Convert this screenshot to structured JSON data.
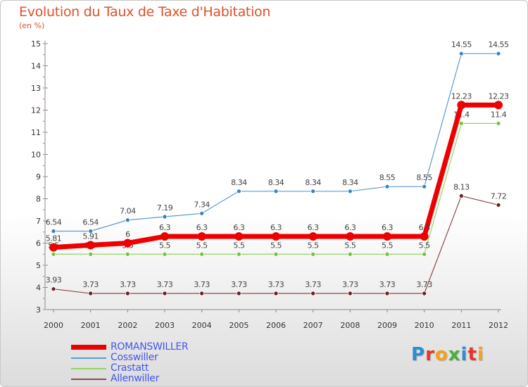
{
  "title": "Evolution du Taux de Taxe d'Habitation",
  "subtitle": "(en %)",
  "logo": {
    "letters": [
      "P",
      "r",
      "o",
      "x",
      "i",
      "t",
      "i"
    ],
    "colors": [
      "#2a8fd0",
      "#e8352e",
      "#f4a21b",
      "#4aae3a",
      "#2a8fd0",
      "#e8352e",
      "#f4a21b"
    ]
  },
  "chart_data": {
    "type": "line",
    "x": [
      "2000",
      "2001",
      "2002",
      "2003",
      "2004",
      "2005",
      "2006",
      "2007",
      "2008",
      "2009",
      "2010",
      "2011",
      "2012"
    ],
    "ylim": [
      3,
      15
    ],
    "yticks": [
      3,
      4,
      5,
      6,
      7,
      8,
      9,
      10,
      11,
      12,
      13,
      14,
      15
    ],
    "grid": false,
    "legend_position": "bottom-left",
    "series": [
      {
        "name": "Cosswiller",
        "color": "#5b9bd0",
        "point_color": "#3a80c0",
        "width": 1.2,
        "values": [
          6.54,
          6.54,
          7.04,
          7.19,
          7.34,
          8.34,
          8.34,
          8.34,
          8.34,
          8.55,
          8.55,
          14.55,
          14.55
        ],
        "labels": [
          "6.54",
          "6.54",
          "7.04",
          "7.19",
          "7.34",
          "8.34",
          "8.34",
          "8.34",
          "8.34",
          "8.55",
          "8.55",
          "14.55",
          "14.55"
        ]
      },
      {
        "name": "Crastatt",
        "color": "#8fd660",
        "point_color": "#6cc83a",
        "width": 1.2,
        "values": [
          5.5,
          5.5,
          5.5,
          5.5,
          5.5,
          5.5,
          5.5,
          5.5,
          5.5,
          5.5,
          5.5,
          11.4,
          11.4
        ],
        "labels": [
          "5.5",
          "5.5",
          "5.5",
          "5.5",
          "5.5",
          "5.5",
          "5.5",
          "5.5",
          "5.5",
          "5.5",
          "5.5",
          "11.4",
          "11.4"
        ]
      },
      {
        "name": "Allenwiller",
        "color": "#8a4a4a",
        "point_color": "#6a1f1f",
        "width": 1.2,
        "values": [
          3.93,
          3.73,
          3.73,
          3.73,
          3.73,
          3.73,
          3.73,
          3.73,
          3.73,
          3.73,
          3.73,
          8.13,
          7.72
        ],
        "labels": [
          "3.93",
          "3.73",
          "3.73",
          "3.73",
          "3.73",
          "3.73",
          "3.73",
          "3.73",
          "3.73",
          "3.73",
          "3.73",
          "8.13",
          "7.72"
        ]
      },
      {
        "name": "ROMANSWILLER",
        "color": "#ee0000",
        "point_color": "#ee0000",
        "width": 7,
        "values": [
          5.81,
          5.91,
          6,
          6.3,
          6.3,
          6.3,
          6.3,
          6.3,
          6.3,
          6.3,
          6.3,
          12.23,
          12.23
        ],
        "labels": [
          "5.81",
          "5.91",
          "6",
          "6.3",
          "6.3",
          "6.3",
          "6.3",
          "6.3",
          "6.3",
          "6.3",
          "6.3",
          "12.23",
          "12.23"
        ]
      }
    ],
    "legend": [
      {
        "name": "ROMANSWILLER",
        "color": "#ee0000",
        "text_color": "#4455ee"
      },
      {
        "name": "Cosswiller",
        "color": "#5b9bd0",
        "text_color": "#4455ee"
      },
      {
        "name": "Crastatt",
        "color": "#8fd660",
        "text_color": "#4455ee"
      },
      {
        "name": "Allenwiller",
        "color": "#8a4a4a",
        "text_color": "#4455ee"
      }
    ]
  }
}
